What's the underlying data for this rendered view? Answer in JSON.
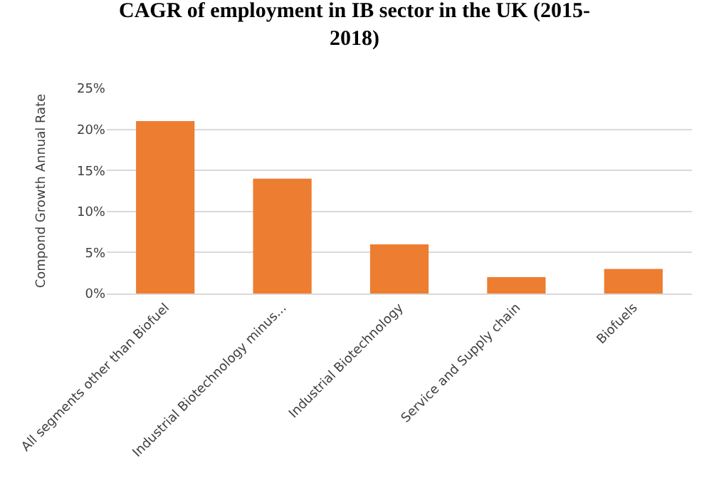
{
  "chart_data": {
    "type": "bar",
    "title": "CAGR of employment in IB sector in the UK (2015-2018)",
    "ylabel": "Compond Growth Annual Rate",
    "categories": [
      "All segments other than Biofuel",
      "Industrial Biotechnology minus...",
      "Industrial Biotechnology",
      "Service and Supply chain",
      "Biofuels"
    ],
    "values": [
      21,
      14,
      6,
      2,
      3
    ],
    "color": "#ed7d31",
    "ylim": [
      0,
      25
    ],
    "yticks": [
      {
        "value": 0,
        "label": "0%"
      },
      {
        "value": 5,
        "label": "5%"
      },
      {
        "value": 10,
        "label": "10%"
      },
      {
        "value": 15,
        "label": "15%"
      },
      {
        "value": 20,
        "label": "20%"
      },
      {
        "value": 25,
        "label": "25%"
      }
    ],
    "grid": "y"
  }
}
